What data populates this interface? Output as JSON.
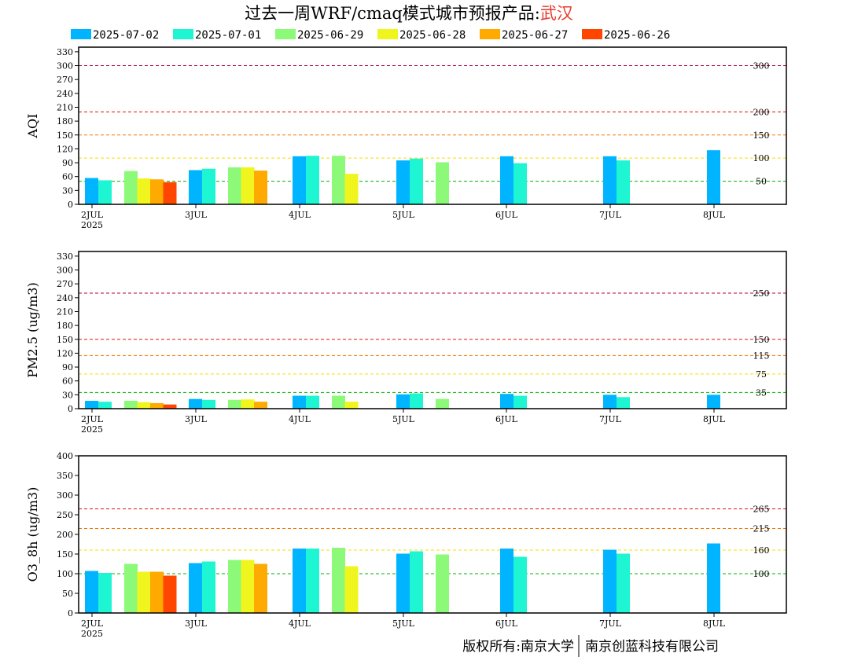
{
  "header": {
    "title_prefix": "过去一周WRF/cmaq模式城市预报产品:",
    "city": "武汉",
    "city_color": "#e83a2c"
  },
  "footer": {
    "copyright": "版权所有:南京大学",
    "company": "南京创蓝科技有限公司"
  },
  "legend": [
    {
      "label": "2025-07-02",
      "color": "#00b4ff"
    },
    {
      "label": "2025-07-01",
      "color": "#1ef5d2"
    },
    {
      "label": "2025-06-29",
      "color": "#8cfa78"
    },
    {
      "label": "2025-06-28",
      "color": "#f0f51e"
    },
    {
      "label": "2025-06-27",
      "color": "#ffaa00"
    },
    {
      "label": "2025-06-26",
      "color": "#ff4600"
    }
  ],
  "chart_data": [
    {
      "type": "bar",
      "ylabel": "AQI",
      "ylim": [
        0,
        340
      ],
      "yticks": [
        0,
        30,
        60,
        90,
        120,
        150,
        180,
        210,
        240,
        270,
        300,
        330
      ],
      "categories": [
        "2JUL",
        "3JUL",
        "4JUL",
        "5JUL",
        "6JUL",
        "7JUL",
        "8JUL"
      ],
      "year_label": "2025",
      "thresholds": [
        {
          "value": 300,
          "label": "300",
          "color": "#b4004a"
        },
        {
          "value": 200,
          "label": "200",
          "color": "#e01010"
        },
        {
          "value": 150,
          "label": "150",
          "color": "#f07800"
        },
        {
          "value": 100,
          "label": "100",
          "color": "#f0e000"
        },
        {
          "value": 50,
          "label": "50",
          "color": "#00b400"
        }
      ],
      "series": [
        {
          "name": "2025-07-02",
          "values": [
            57,
            74,
            104,
            95,
            104,
            104,
            117
          ]
        },
        {
          "name": "2025-07-01",
          "values": [
            52,
            77,
            105,
            99,
            89,
            95,
            null
          ]
        },
        {
          "name": "2025-06-29",
          "values": [
            72,
            80,
            105,
            91,
            null,
            null,
            null
          ]
        },
        {
          "name": "2025-06-28",
          "values": [
            56,
            80,
            66,
            null,
            null,
            null,
            null
          ]
        },
        {
          "name": "2025-06-27",
          "values": [
            54,
            73,
            null,
            null,
            null,
            null,
            null
          ]
        },
        {
          "name": "2025-06-26",
          "values": [
            48,
            null,
            null,
            null,
            null,
            null,
            null
          ]
        }
      ]
    },
    {
      "type": "bar",
      "ylabel": "PM2.5 (ug/m3)",
      "ylim": [
        0,
        340
      ],
      "yticks": [
        0,
        30,
        60,
        90,
        120,
        150,
        180,
        210,
        240,
        270,
        300,
        330
      ],
      "categories": [
        "2JUL",
        "3JUL",
        "4JUL",
        "5JUL",
        "6JUL",
        "7JUL",
        "8JUL"
      ],
      "year_label": "2025",
      "thresholds": [
        {
          "value": 250,
          "label": "250",
          "color": "#b4004a"
        },
        {
          "value": 150,
          "label": "150",
          "color": "#e01010"
        },
        {
          "value": 115,
          "label": "115",
          "color": "#f07800"
        },
        {
          "value": 75,
          "label": "75",
          "color": "#f0e000"
        },
        {
          "value": 35,
          "label": "35",
          "color": "#00b400"
        }
      ],
      "series": [
        {
          "name": "2025-07-02",
          "values": [
            17,
            21,
            28,
            31,
            32,
            30,
            30
          ]
        },
        {
          "name": "2025-07-01",
          "values": [
            15,
            19,
            28,
            33,
            28,
            25,
            null
          ]
        },
        {
          "name": "2025-06-29",
          "values": [
            17,
            19,
            28,
            21,
            null,
            null,
            null
          ]
        },
        {
          "name": "2025-06-28",
          "values": [
            14,
            20,
            15,
            null,
            null,
            null,
            null
          ]
        },
        {
          "name": "2025-06-27",
          "values": [
            12,
            15,
            null,
            null,
            null,
            null,
            null
          ]
        },
        {
          "name": "2025-06-26",
          "values": [
            9,
            null,
            null,
            null,
            null,
            null,
            null
          ]
        }
      ]
    },
    {
      "type": "bar",
      "ylabel": "O3_8h (ug/m3)",
      "ylim": [
        0,
        400
      ],
      "yticks": [
        0,
        50,
        100,
        150,
        200,
        250,
        300,
        350,
        400
      ],
      "categories": [
        "2JUL",
        "3JUL",
        "4JUL",
        "5JUL",
        "6JUL",
        "7JUL",
        "8JUL"
      ],
      "year_label": "2025",
      "thresholds": [
        {
          "value": 265,
          "label": "265",
          "color": "#e01010"
        },
        {
          "value": 215,
          "label": "215",
          "color": "#f07800"
        },
        {
          "value": 160,
          "label": "160",
          "color": "#f0e000"
        },
        {
          "value": 100,
          "label": "100",
          "color": "#00b400"
        }
      ],
      "series": [
        {
          "name": "2025-07-02",
          "values": [
            107,
            127,
            164,
            151,
            164,
            161,
            177
          ]
        },
        {
          "name": "2025-07-01",
          "values": [
            102,
            131,
            164,
            157,
            143,
            151,
            null
          ]
        },
        {
          "name": "2025-06-29",
          "values": [
            125,
            135,
            166,
            149,
            null,
            null,
            null
          ]
        },
        {
          "name": "2025-06-28",
          "values": [
            105,
            135,
            119,
            null,
            null,
            null,
            null
          ]
        },
        {
          "name": "2025-06-27",
          "values": [
            105,
            125,
            null,
            null,
            null,
            null,
            null
          ]
        },
        {
          "name": "2025-06-26",
          "values": [
            95,
            null,
            null,
            null,
            null,
            null,
            null
          ]
        }
      ]
    }
  ]
}
